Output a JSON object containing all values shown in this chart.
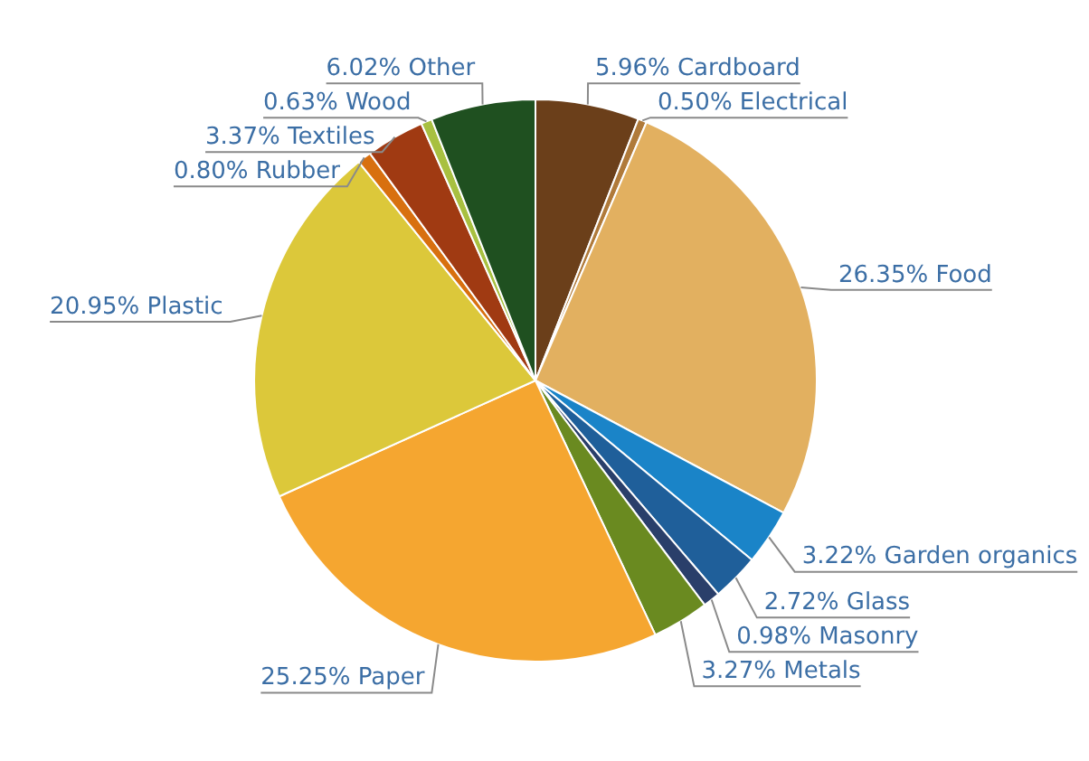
{
  "chart_data": {
    "type": "pie",
    "categories": [
      "Cardboard",
      "Electrical",
      "Food",
      "Garden organics",
      "Glass",
      "Masonry",
      "Metals",
      "Paper",
      "Plastic",
      "Rubber",
      "Textiles",
      "Wood",
      "Other"
    ],
    "values": [
      5.96,
      0.5,
      26.35,
      3.22,
      2.72,
      0.98,
      3.27,
      25.25,
      20.95,
      0.8,
      3.37,
      0.63,
      6.02
    ],
    "value_labels": [
      "5.96%",
      "0.50%",
      "26.35%",
      "3.22%",
      "2.72%",
      "0.98%",
      "3.27%",
      "25.25%",
      "20.95%",
      "0.80%",
      "3.37%",
      "0.63%",
      "6.02%"
    ],
    "colors": [
      "#6b3f1a",
      "#b07a3a",
      "#e2b060",
      "#1a84c8",
      "#1f5f9a",
      "#2a3f6a",
      "#6a8a20",
      "#f5a630",
      "#dcc83a",
      "#d8700f",
      "#a03a12",
      "#a8c040",
      "#1f5020"
    ]
  }
}
